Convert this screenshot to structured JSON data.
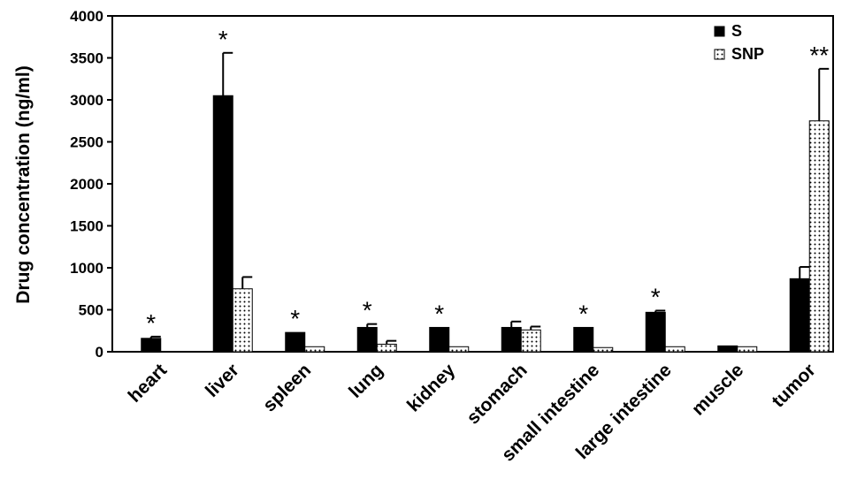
{
  "chart_data": {
    "type": "bar",
    "ylabel": "Drug concentration (ng/ml)",
    "ylim": [
      0,
      4000
    ],
    "yticks": [
      0,
      500,
      1000,
      1500,
      2000,
      2500,
      3000,
      3500,
      4000
    ],
    "categories": [
      "heart",
      "liver",
      "spleen",
      "lung",
      "kidney",
      "stomach",
      "small intestine",
      "large intestine",
      "muscle",
      "tumor"
    ],
    "series": [
      {
        "name": "S",
        "fill": "solid-black",
        "values": [
          160,
          3050,
          230,
          290,
          290,
          290,
          290,
          470,
          70,
          870
        ],
        "errors": [
          20,
          510,
          0,
          40,
          0,
          70,
          0,
          20,
          0,
          140
        ]
      },
      {
        "name": "SNP",
        "fill": "dotted",
        "values": [
          0,
          750,
          60,
          90,
          60,
          260,
          50,
          60,
          60,
          2750
        ],
        "errors": [
          0,
          140,
          0,
          40,
          0,
          40,
          0,
          0,
          0,
          620
        ]
      }
    ],
    "annotations": [
      "*",
      "*",
      "*",
      "*",
      "*",
      "*",
      "*",
      "**"
    ],
    "annotation_positions": [
      {
        "category": "heart",
        "series": "S",
        "text": "*"
      },
      {
        "category": "liver",
        "series": "S",
        "text": "*"
      },
      {
        "category": "spleen",
        "series": "S",
        "text": "*"
      },
      {
        "category": "lung",
        "series": "S",
        "text": "*"
      },
      {
        "category": "kidney",
        "series": "S",
        "text": "*"
      },
      {
        "category": "small intestine",
        "series": "S",
        "text": "*"
      },
      {
        "category": "large intestine",
        "series": "S",
        "text": "*"
      },
      {
        "category": "tumor",
        "series": "SNP",
        "text": "**"
      }
    ],
    "legend": {
      "position": "top-right",
      "entries": [
        "S",
        "SNP"
      ]
    },
    "grid": false,
    "colors": {
      "axis": "#000000",
      "bar_s": "#000000",
      "bar_snp_bg": "#ffffff",
      "bar_snp_dot": "#000000"
    }
  }
}
